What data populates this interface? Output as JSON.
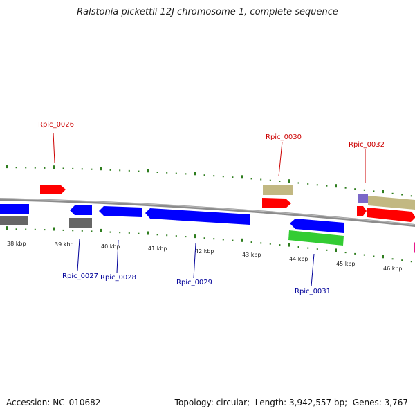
{
  "title": "Ralstonia pickettii 12J chromosome 1, complete sequence",
  "footer": {
    "accession_label": "Accession:",
    "accession": "NC_010682",
    "topology_label": "Topology:",
    "topology": "circular",
    "length_label": "Length:",
    "length": "3,942,557 bp",
    "genes_label": "Genes:",
    "genes": "3,767"
  },
  "colors": {
    "forward_gene": "#ff0000",
    "reverse_gene": "#0000ff",
    "backbone": "#8c8c8c",
    "tick": "#2e7d1e",
    "label_forward": "#cc0000",
    "label_reverse": "#000099",
    "tan_feature": "#c2b882",
    "gray_feature": "#666666",
    "green_feature": "#33cc33",
    "purple_feature": "#7b68c8",
    "magenta_feature": "#e8158a"
  },
  "scale": {
    "unit": "kbp",
    "ticks": [
      "38 kbp",
      "39 kbp",
      "40 kbp",
      "41 kbp",
      "42 kbp",
      "43 kbp",
      "44 kbp",
      "45 kbp",
      "46 kbp"
    ]
  },
  "genes": [
    {
      "label": "Rpic_0026",
      "strand": "+"
    },
    {
      "label": "Rpic_0027",
      "strand": "-"
    },
    {
      "label": "Rpic_0028",
      "strand": "-"
    },
    {
      "label": "Rpic_0029",
      "strand": "-"
    },
    {
      "label": "Rpic_0030",
      "strand": "+"
    },
    {
      "label": "Rpic_0031",
      "strand": "-"
    },
    {
      "label": "Rpic_0032",
      "strand": "+"
    }
  ]
}
